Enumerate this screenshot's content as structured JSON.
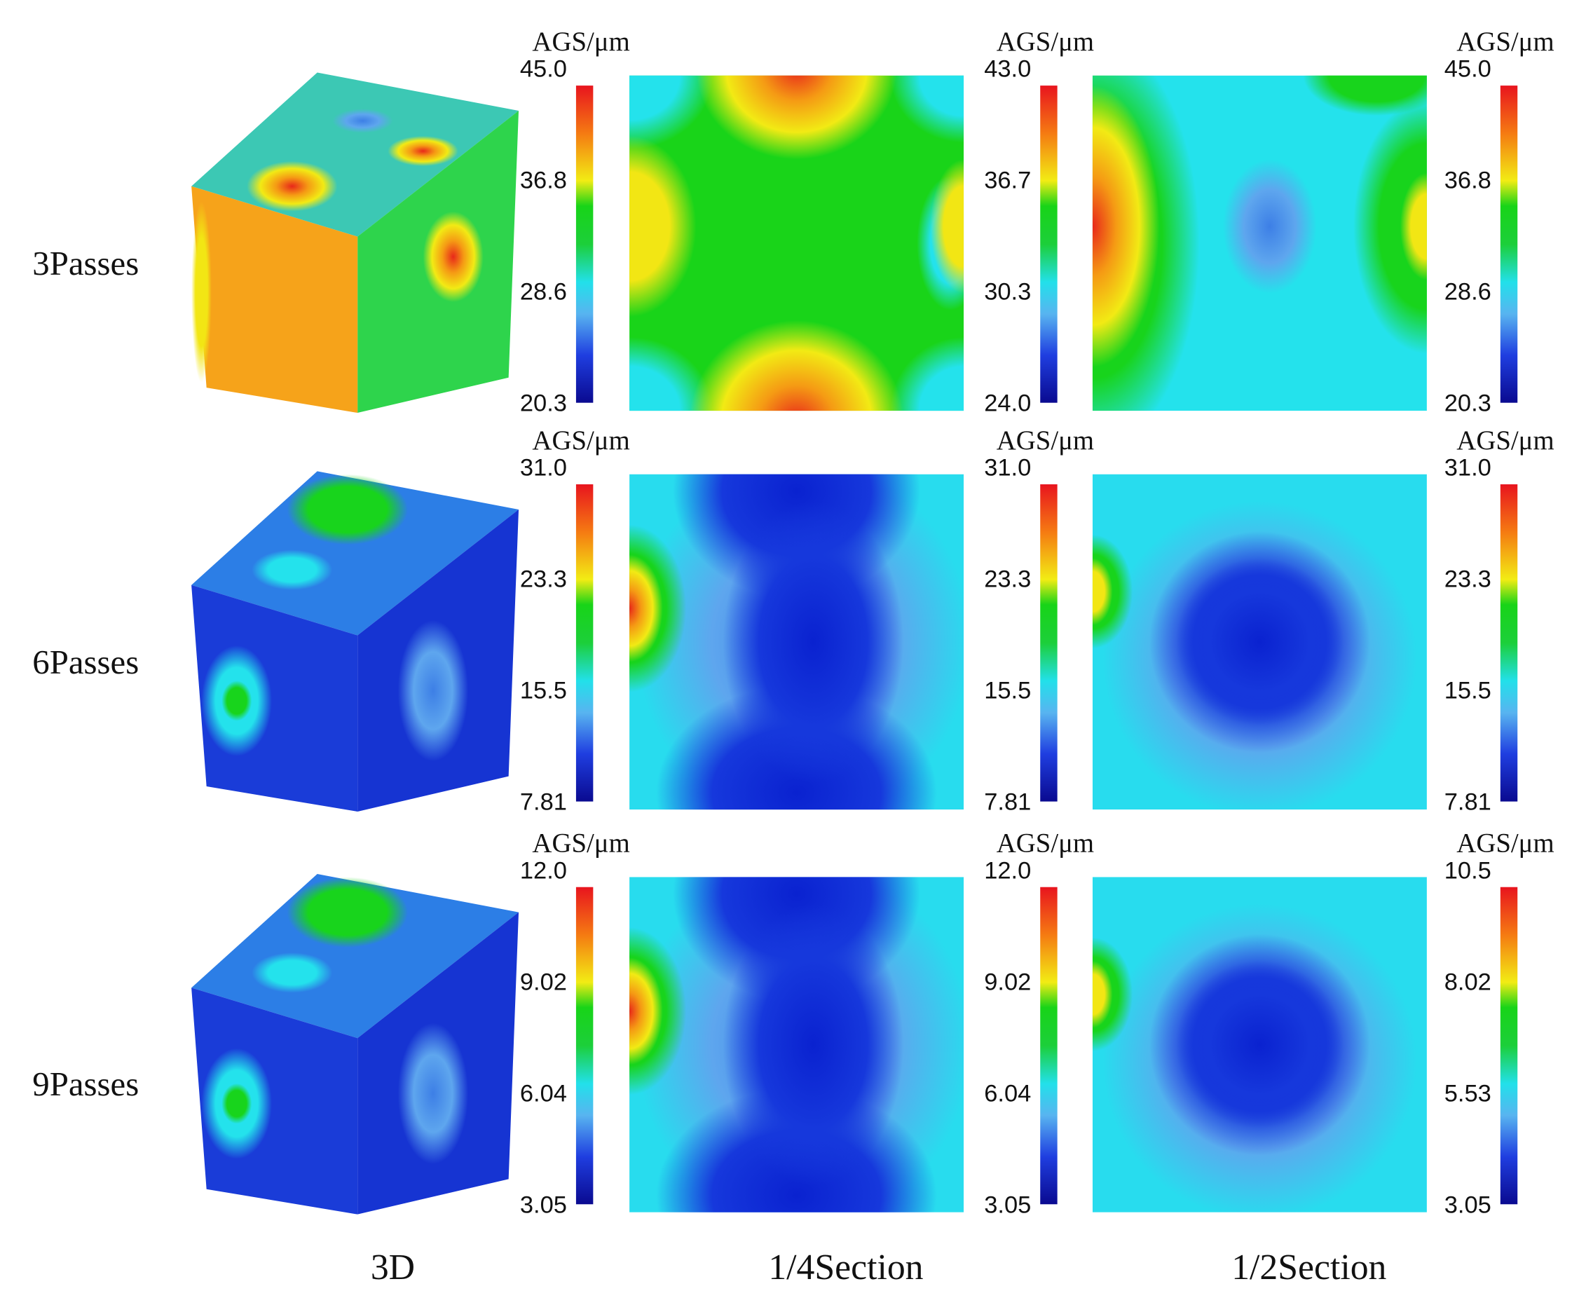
{
  "rows": [
    {
      "label": "3Passes",
      "panels": [
        {
          "unit": "AGS/μm",
          "ticks": [
            "45.0",
            "36.8",
            "28.6",
            "20.3"
          ]
        },
        {
          "unit": "AGS/μm",
          "ticks": [
            "43.0",
            "36.7",
            "30.3",
            "24.0"
          ]
        },
        {
          "unit": "AGS/μm",
          "ticks": [
            "45.0",
            "36.8",
            "28.6",
            "20.3"
          ]
        }
      ]
    },
    {
      "label": "6Passes",
      "panels": [
        {
          "unit": "AGS/μm",
          "ticks": [
            "31.0",
            "23.3",
            "15.5",
            "7.81"
          ]
        },
        {
          "unit": "AGS/μm",
          "ticks": [
            "31.0",
            "23.3",
            "15.5",
            "7.81"
          ]
        },
        {
          "unit": "AGS/μm",
          "ticks": [
            "31.0",
            "23.3",
            "15.5",
            "7.81"
          ]
        }
      ]
    },
    {
      "label": "9Passes",
      "panels": [
        {
          "unit": "AGS/μm",
          "ticks": [
            "12.0",
            "9.02",
            "6.04",
            "3.05"
          ]
        },
        {
          "unit": "AGS/μm",
          "ticks": [
            "12.0",
            "9.02",
            "6.04",
            "3.05"
          ]
        },
        {
          "unit": "AGS/μm",
          "ticks": [
            "10.5",
            "8.02",
            "5.53",
            "3.05"
          ]
        }
      ]
    }
  ],
  "columns": [
    "3D",
    "1/4Section",
    "1/2Section"
  ]
}
